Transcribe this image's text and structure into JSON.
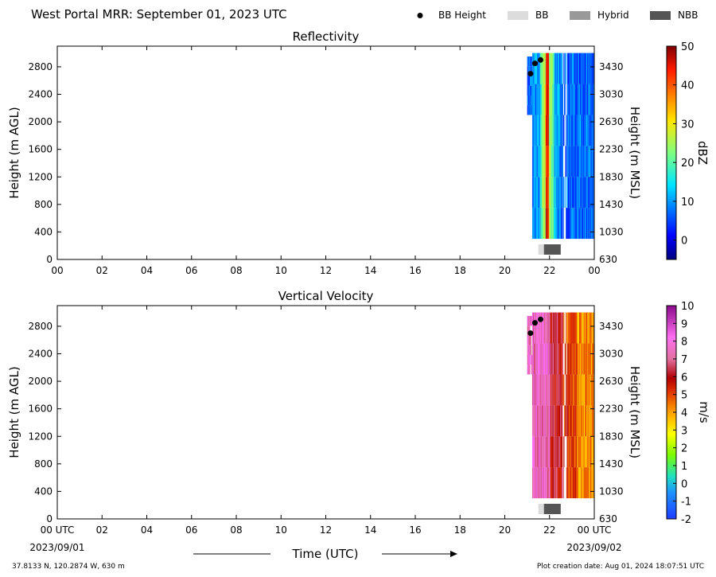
{
  "header": {
    "title": "West Portal MRR:  September 01, 2023 UTC",
    "legend": [
      {
        "label": "BB Height",
        "kind": "dot",
        "color": "#000000"
      },
      {
        "label": "BB",
        "kind": "box",
        "color": "#dcdcdc"
      },
      {
        "label": "Hybrid",
        "kind": "box",
        "color": "#999999"
      },
      {
        "label": "NBB",
        "kind": "box",
        "color": "#555555"
      }
    ]
  },
  "footer": {
    "location": "37.8133 N, 120.2874 W, 630 m",
    "creation": "Plot creation date: Aug 01, 2024 18:07:51 UTC",
    "time_label": "Time (UTC)",
    "start_date": "2023/09/01",
    "end_date": "2023/09/02"
  },
  "chart_data": [
    {
      "type": "heatmap",
      "title": "Reflectivity",
      "ylabel": "Height (m AGL)",
      "y2label": "Height (m MSL)",
      "xlim": [
        0,
        24
      ],
      "ylim": [
        0,
        3100
      ],
      "x_ticks": [
        "00",
        "02",
        "04",
        "06",
        "08",
        "10",
        "12",
        "14",
        "16",
        "18",
        "20",
        "22",
        "00"
      ],
      "y_ticks": [
        0,
        400,
        800,
        1200,
        1600,
        2000,
        2400,
        2800
      ],
      "y2_ticks": [
        630,
        1030,
        1430,
        1830,
        2230,
        2630,
        3030,
        3430
      ],
      "data_window_utc": [
        21.0,
        24.0
      ],
      "data_height_range_m": [
        300,
        3000
      ],
      "bb_height": [
        {
          "time": 21.15,
          "height": 2700
        },
        {
          "time": 21.35,
          "height": 2850
        },
        {
          "time": 21.6,
          "height": 2900
        }
      ],
      "bb_bars": [
        {
          "type": "BB",
          "start": 21.5,
          "end": 21.75
        },
        {
          "type": "NBB",
          "start": 21.75,
          "end": 22.5
        }
      ],
      "colorbar": {
        "label": "dBZ",
        "range": [
          -5,
          50
        ],
        "ticks": [
          0,
          10,
          20,
          30,
          40,
          50
        ],
        "colormap": "jet"
      }
    },
    {
      "type": "heatmap",
      "title": "Vertical Velocity",
      "ylabel": "Height (m AGL)",
      "y2label": "Height (m MSL)",
      "xlim": [
        0,
        24
      ],
      "ylim": [
        0,
        3100
      ],
      "x_ticks": [
        "00 UTC",
        "02",
        "04",
        "06",
        "08",
        "10",
        "12",
        "14",
        "16",
        "18",
        "20",
        "22",
        "00 UTC"
      ],
      "y_ticks": [
        0,
        400,
        800,
        1200,
        1600,
        2000,
        2400,
        2800
      ],
      "y2_ticks": [
        630,
        1030,
        1430,
        1830,
        2230,
        2630,
        3030,
        3430
      ],
      "data_window_utc": [
        21.0,
        24.0
      ],
      "data_height_range_m": [
        300,
        3000
      ],
      "bb_height": [
        {
          "time": 21.15,
          "height": 2700
        },
        {
          "time": 21.35,
          "height": 2850
        },
        {
          "time": 21.6,
          "height": 2900
        }
      ],
      "bb_bars": [
        {
          "type": "BB",
          "start": 21.5,
          "end": 21.75
        },
        {
          "type": "NBB",
          "start": 21.75,
          "end": 22.5
        }
      ],
      "colorbar": {
        "label": "m/s",
        "range": [
          -2,
          10
        ],
        "ticks": [
          -2,
          -1,
          0,
          1,
          2,
          3,
          4,
          5,
          6,
          7,
          8,
          9,
          10
        ],
        "colormap": "velocity"
      }
    }
  ]
}
